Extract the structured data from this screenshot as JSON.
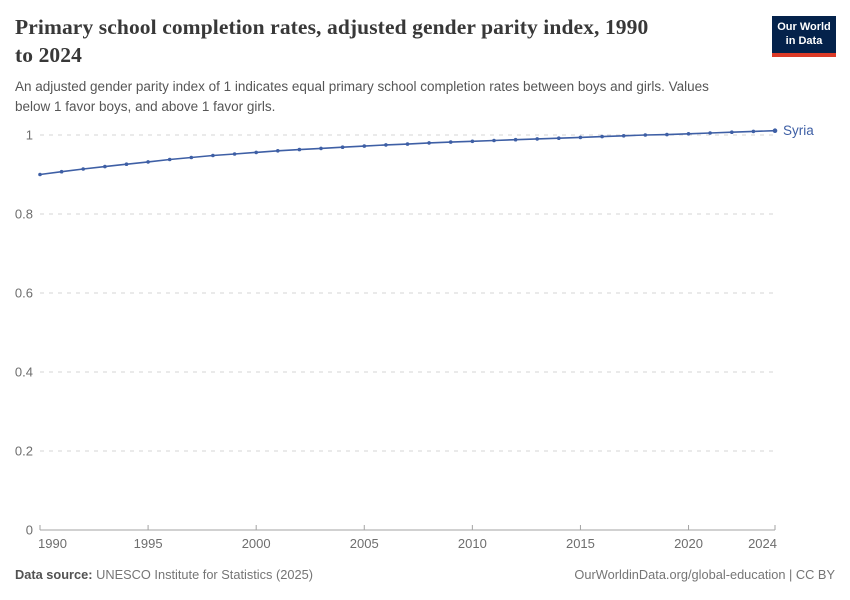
{
  "header": {
    "title_line1": "Primary school completion rates, adjusted gender parity index, 1990",
    "title_line2": "to 2024",
    "subtitle_line1": "An adjusted gender parity index of 1 indicates equal primary school completion rates between boys and girls. Values",
    "subtitle_line2": "below 1 favor boys, and above 1 favor girls."
  },
  "logo": {
    "line1": "Our World",
    "line2": "in Data",
    "bg_color": "#04224b",
    "accent_color": "#dc3a27"
  },
  "chart_data": {
    "type": "line",
    "title": "Primary school completion rates, adjusted gender parity index, 1990 to 2024",
    "series_label": "Syria",
    "x": [
      1990,
      1991,
      1992,
      1993,
      1994,
      1995,
      1996,
      1997,
      1998,
      1999,
      2000,
      2001,
      2002,
      2003,
      2004,
      2005,
      2006,
      2007,
      2008,
      2009,
      2010,
      2011,
      2012,
      2013,
      2014,
      2015,
      2016,
      2017,
      2018,
      2019,
      2020,
      2021,
      2022,
      2023,
      2024
    ],
    "values": [
      0.9,
      0.907,
      0.914,
      0.92,
      0.926,
      0.932,
      0.938,
      0.943,
      0.948,
      0.952,
      0.956,
      0.96,
      0.963,
      0.966,
      0.969,
      0.972,
      0.975,
      0.977,
      0.98,
      0.982,
      0.984,
      0.986,
      0.988,
      0.99,
      0.992,
      0.994,
      0.996,
      0.998,
      1.0,
      1.001,
      1.003,
      1.005,
      1.007,
      1.009,
      1.011
    ],
    "x_range": [
      1990,
      2024
    ],
    "ylim": [
      0,
      1
    ],
    "xticks": [
      1990,
      1995,
      2000,
      2005,
      2010,
      2015,
      2020,
      2024
    ],
    "ygrid": [
      0.2,
      0.4,
      0.6,
      0.8,
      1
    ],
    "y_zero_label": "0",
    "grid_style": "dashed",
    "legend_position": "right-of-line",
    "colors": {
      "line": "#3e5fa5",
      "grid": "#d6d6d6",
      "axis": "#a3a3a3",
      "tick_text": "#6e6e6e"
    }
  },
  "footer": {
    "datasource_label": "Data source:",
    "datasource_value": " UNESCO Institute for Statistics (2025)",
    "link_text": "OurWorldinData.org/global-education | CC BY"
  }
}
